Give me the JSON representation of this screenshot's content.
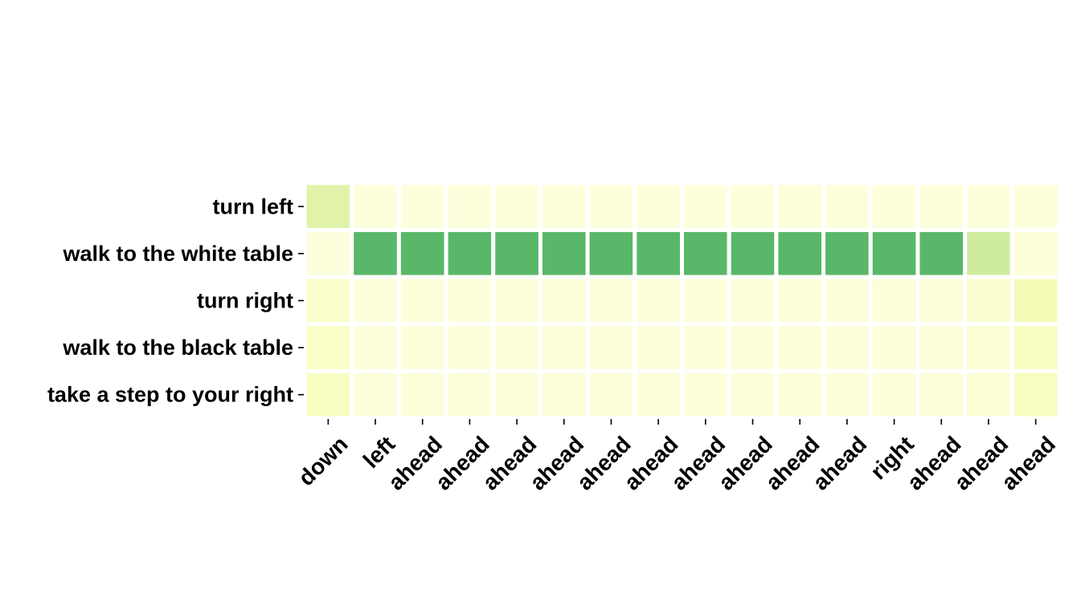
{
  "chart_data": {
    "type": "heatmap",
    "title": "",
    "xlabel": "",
    "ylabel": "",
    "rows": [
      "turn left",
      "walk to the white table",
      "turn right",
      "walk to the black table",
      "take a step to your right"
    ],
    "columns": [
      "down",
      "left",
      "ahead",
      "ahead",
      "ahead",
      "ahead",
      "ahead",
      "ahead",
      "ahead",
      "ahead",
      "ahead",
      "ahead",
      "right",
      "ahead",
      "ahead",
      "ahead"
    ],
    "values": [
      [
        0.35,
        0.04,
        0.04,
        0.04,
        0.04,
        0.04,
        0.04,
        0.04,
        0.04,
        0.04,
        0.04,
        0.04,
        0.04,
        0.04,
        0.04,
        0.04
      ],
      [
        0.04,
        0.92,
        0.92,
        0.92,
        0.92,
        0.92,
        0.92,
        0.92,
        0.92,
        0.92,
        0.92,
        0.92,
        0.92,
        0.92,
        0.45,
        0.06
      ],
      [
        0.12,
        0.05,
        0.05,
        0.05,
        0.05,
        0.05,
        0.05,
        0.05,
        0.05,
        0.05,
        0.05,
        0.05,
        0.05,
        0.05,
        0.1,
        0.22
      ],
      [
        0.14,
        0.05,
        0.05,
        0.05,
        0.05,
        0.05,
        0.05,
        0.05,
        0.05,
        0.05,
        0.05,
        0.05,
        0.05,
        0.05,
        0.08,
        0.18
      ],
      [
        0.16,
        0.05,
        0.05,
        0.05,
        0.05,
        0.05,
        0.05,
        0.05,
        0.05,
        0.05,
        0.05,
        0.05,
        0.05,
        0.05,
        0.08,
        0.18
      ]
    ],
    "colormap": "YlGn",
    "vmin": 0,
    "vmax": 1,
    "grid": false,
    "legend": "none"
  }
}
